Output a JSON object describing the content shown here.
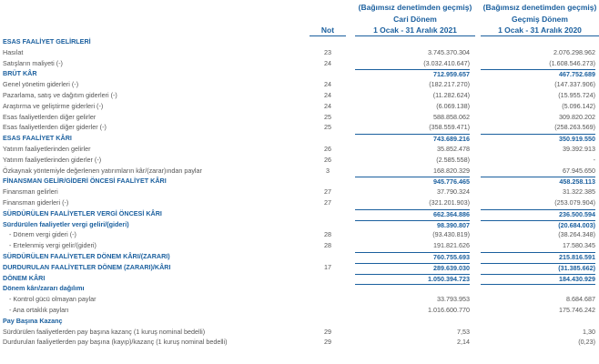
{
  "header": {
    "current_audit": "(Bağımsız denetimden geçmiş)",
    "prior_audit": "(Bağımsız denetimden geçmiş)",
    "current_period": "Cari Dönem",
    "prior_period": "Geçmiş Dönem",
    "note_label": "Not",
    "current_range": "1 Ocak - 31 Aralık 2021",
    "prior_range": "1 Ocak - 31 Aralık 2020"
  },
  "rows": [
    {
      "label": "ESAS FAALİYET GELİRLERİ",
      "note": "",
      "current": "",
      "prior": "",
      "style": "section"
    },
    {
      "label": "Hasılat",
      "note": "23",
      "current": "3.745.370.304",
      "prior": "2.076.298.962",
      "style": "normal"
    },
    {
      "label": "Satışların maliyeti (-)",
      "note": "24",
      "current": "(3.032.410.647)",
      "prior": "(1.608.546.273)",
      "style": "normal"
    },
    {
      "label": "BRÜT KÂR",
      "note": "",
      "current": "712.959.657",
      "prior": "467.752.689",
      "style": "bold total"
    },
    {
      "label": "Genel yönetim giderleri (-)",
      "note": "24",
      "current": "(182.217.270)",
      "prior": "(147.337.906)",
      "style": "normal"
    },
    {
      "label": "Pazarlama, satış ve dağıtım giderleri (-)",
      "note": "24",
      "current": "(11.282.624)",
      "prior": "(15.955.724)",
      "style": "normal"
    },
    {
      "label": "Araştırma ve geliştirme giderleri (-)",
      "note": "24",
      "current": "(6.069.138)",
      "prior": "(5.096.142)",
      "style": "normal"
    },
    {
      "label": "Esas faaliyetlerden diğer gelirler",
      "note": "25",
      "current": "588.858.062",
      "prior": "309.820.202",
      "style": "normal"
    },
    {
      "label": "Esas faaliyetlerden diğer giderler (-)",
      "note": "25",
      "current": "(358.559.471)",
      "prior": "(258.263.569)",
      "style": "normal"
    },
    {
      "label": "ESAS FAALİYET KÂRI",
      "note": "",
      "current": "743.689.216",
      "prior": "350.919.550",
      "style": "bold total"
    },
    {
      "label": "Yatırım faaliyetlerinden gelirler",
      "note": "26",
      "current": "35.852.478",
      "prior": "39.392.913",
      "style": "normal"
    },
    {
      "label": "Yatırım faaliyetlerinden giderler (-)",
      "note": "26",
      "current": "(2.585.558)",
      "prior": "-",
      "style": "normal"
    },
    {
      "label": "Özkaynak yöntemiyle değerlenen yatırımların kâr/(zarar)ından paylar",
      "note": "3",
      "current": "168.820.329",
      "prior": "67.945.650",
      "style": "normal"
    },
    {
      "label": "FİNANSMAN GELİR/GİDERİ ÖNCESİ FAALİYET KÂRI",
      "note": "",
      "current": "945.776.465",
      "prior": "458.258.113",
      "style": "bold total"
    },
    {
      "label": "Finansman gelirleri",
      "note": "27",
      "current": "37.790.324",
      "prior": "31.322.385",
      "style": "normal"
    },
    {
      "label": "Finansman giderleri (-)",
      "note": "27",
      "current": "(321.201.903)",
      "prior": "(253.079.904)",
      "style": "normal"
    },
    {
      "label": "SÜRDÜRÜLEN FAALİYETLER VERGİ ÖNCESİ KÂRI",
      "note": "",
      "current": "662.364.886",
      "prior": "236.500.594",
      "style": "bold total"
    },
    {
      "label": "Sürdürülen faaliyetler vergi geliri/(gideri)",
      "note": "",
      "current": "98.390.807",
      "prior": "(20.684.003)",
      "style": "bold total"
    },
    {
      "label": "- Dönem vergi gideri (-)",
      "note": "28",
      "current": "(93.430.819)",
      "prior": "(38.264.348)",
      "style": "normal indent"
    },
    {
      "label": "- Ertelenmiş vergi gelir/(gideri)",
      "note": "28",
      "current": "191.821.626",
      "prior": "17.580.345",
      "style": "normal indent"
    },
    {
      "label": "SÜRDÜRÜLEN FAALİYETLER DÖNEM KÂRI/(ZARARI)",
      "note": "",
      "current": "760.755.693",
      "prior": "215.816.591",
      "style": "bold total"
    },
    {
      "label": "DURDURULAN FAALİYETLER DÖNEM (ZARARI)/KÂRI",
      "note": "17",
      "current": "289.639.030",
      "prior": "(31.385.662)",
      "style": "bold total"
    },
    {
      "label": "DÖNEM KÂRI",
      "note": "",
      "current": "1.050.394.723",
      "prior": "184.430.929",
      "style": "bold dbl"
    },
    {
      "label": "Dönem kârı/zararı dağılımı",
      "note": "",
      "current": "",
      "prior": "",
      "style": "section"
    },
    {
      "label": "- Kontrol gücü olmayan paylar",
      "note": "",
      "current": "33.793.953",
      "prior": "8.684.687",
      "style": "normal indent"
    },
    {
      "label": "- Ana ortaklık payları",
      "note": "",
      "current": "1.016.600.770",
      "prior": "175.746.242",
      "style": "normal indent"
    },
    {
      "label": "Pay Başına Kazanç",
      "note": "",
      "current": "",
      "prior": "",
      "style": "section"
    },
    {
      "label": "Sürdürülen faaliyetlerden pay başına kazanç (1 kuruş nominal bedelli)",
      "note": "29",
      "current": "7,53",
      "prior": "1,30",
      "style": "normal"
    },
    {
      "label": "Durdurulan faaliyetlerden pay başına (kayıp)/kazanç (1 kuruş nominal bedelli)",
      "note": "29",
      "current": "2,14",
      "prior": "(0,23)",
      "style": "normal"
    }
  ]
}
